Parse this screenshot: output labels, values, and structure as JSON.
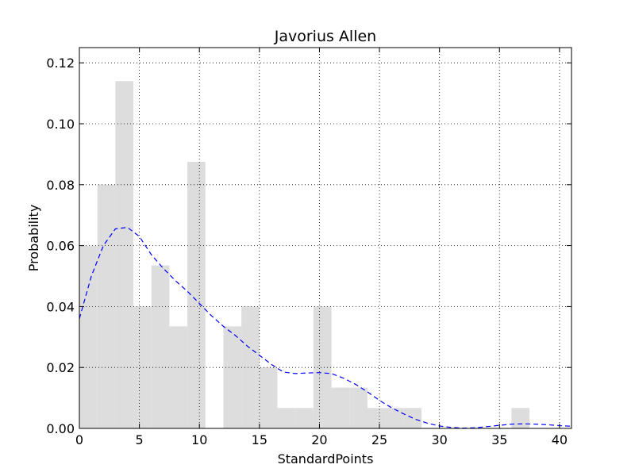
{
  "chart_data": {
    "type": "bar",
    "title": "Javorius Allen",
    "xlabel": "StandardPoints",
    "ylabel": "Probability",
    "xlim": [
      0,
      41
    ],
    "ylim": [
      0,
      0.125
    ],
    "x_ticks": [
      0,
      5,
      10,
      15,
      20,
      25,
      30,
      35,
      40
    ],
    "y_ticks": [
      0.0,
      0.02,
      0.04,
      0.06,
      0.08,
      0.1,
      0.12
    ],
    "y_tick_labels": [
      "0.00",
      "0.02",
      "0.04",
      "0.06",
      "0.08",
      "0.10",
      "0.12"
    ],
    "grid": true,
    "histogram": {
      "bin_edges": [
        0,
        1.5,
        3.0,
        4.5,
        6.0,
        7.5,
        9.0,
        10.5,
        12.0,
        13.5,
        15.0,
        16.5,
        18.0,
        19.5,
        21.0,
        22.5,
        24.0,
        25.5,
        27.0,
        28.5,
        30.0,
        31.5,
        33.0,
        34.5,
        36.0,
        37.5
      ],
      "values": [
        0.06,
        0.08,
        0.114,
        0.04,
        0.0535,
        0.0335,
        0.0875,
        0.0,
        0.0335,
        0.04,
        0.02,
        0.0067,
        0.0067,
        0.04,
        0.0134,
        0.0134,
        0.0067,
        0.0067,
        0.0067,
        0.0,
        0.0,
        0.0,
        0.0,
        0.0,
        0.0067
      ],
      "color": "#dddddd"
    },
    "density": {
      "x": [
        0,
        1,
        2,
        3,
        4,
        5,
        6,
        7,
        8,
        9,
        10,
        11,
        12,
        13,
        14,
        15,
        16,
        17,
        18,
        19,
        20,
        21,
        22,
        23,
        24,
        25,
        26,
        27,
        28,
        29,
        30,
        31,
        32,
        33,
        34,
        35,
        36,
        37,
        38,
        39,
        40,
        41
      ],
      "y": [
        0.036,
        0.05,
        0.06,
        0.0655,
        0.066,
        0.063,
        0.057,
        0.0525,
        0.0485,
        0.045,
        0.041,
        0.037,
        0.0335,
        0.0305,
        0.027,
        0.024,
        0.021,
        0.0185,
        0.018,
        0.0182,
        0.0183,
        0.018,
        0.0165,
        0.0145,
        0.012,
        0.0092,
        0.0068,
        0.0048,
        0.003,
        0.0017,
        0.0008,
        0.0003,
        0.0001,
        0.0002,
        0.0006,
        0.001,
        0.0014,
        0.0015,
        0.0014,
        0.0012,
        0.0009,
        0.0007
      ],
      "color": "#0000ff",
      "style": "dashed"
    }
  }
}
